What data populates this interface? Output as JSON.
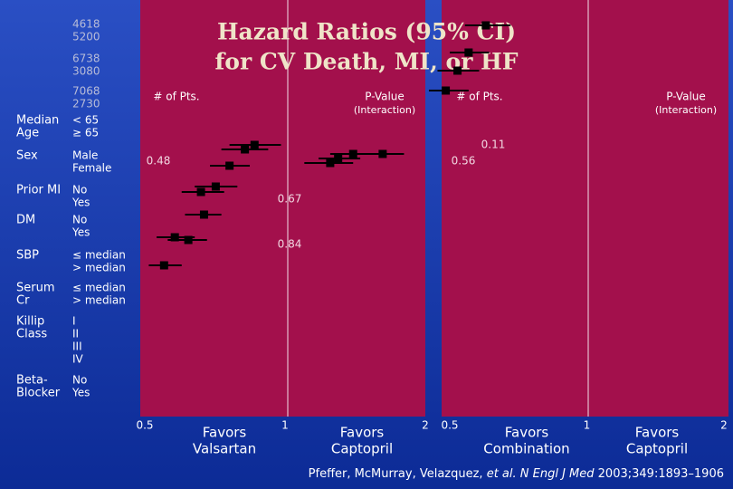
{
  "title": [
    "Hazard Ratios (95% CI)",
    "for CV Death, MI, or HF"
  ],
  "subgroups": [
    {
      "label": [
        "Median",
        "Age"
      ],
      "levels": [
        "< 65",
        "≥ 65"
      ]
    },
    {
      "label": [
        "Sex"
      ],
      "levels": [
        "Male",
        "Female"
      ]
    },
    {
      "label": [
        "Prior MI"
      ],
      "levels": [
        "No",
        "Yes"
      ]
    },
    {
      "label": [
        "DM"
      ],
      "levels": [
        "No",
        "Yes"
      ]
    },
    {
      "label": [
        "SBP"
      ],
      "levels": [
        "≤ median",
        "> median"
      ]
    },
    {
      "label": [
        "Serum",
        "Cr"
      ],
      "levels": [
        "≤ median",
        "> median"
      ]
    },
    {
      "label": [
        "Killip",
        "Class"
      ],
      "levels": [
        "I",
        "II",
        "III",
        "IV"
      ]
    },
    {
      "label": [
        "Beta-",
        "Blocker"
      ],
      "levels": [
        "No",
        "Yes"
      ]
    }
  ],
  "counts": [
    [
      4618,
      5200
    ],
    [
      6738,
      3080
    ],
    [
      7068,
      2730
    ]
  ],
  "panels": [
    {
      "header_n": "# of Pts.",
      "header_p": "P-Value",
      "header_sub": "(Interaction)",
      "pvalues": [
        0.48,
        0.67,
        0.84
      ],
      "xticks": [
        0.5,
        1,
        2
      ],
      "xlim": [
        0.5,
        2
      ],
      "favors": [
        [
          "Favors",
          "Valsartan"
        ],
        [
          "Favors",
          "Captopril"
        ]
      ],
      "points": [
        {
          "hr": 0.55,
          "lo": 0.51,
          "hi": 0.6
        },
        {
          "hr": 0.58,
          "lo": 0.53,
          "hi": 0.64
        },
        {
          "hr": 0.62,
          "lo": 0.56,
          "hi": 0.68
        },
        {
          "hr": 0.67,
          "lo": 0.61,
          "hi": 0.73
        },
        {
          "hr": 0.66,
          "lo": 0.6,
          "hi": 0.74
        },
        {
          "hr": 0.71,
          "lo": 0.64,
          "hi": 0.79
        },
        {
          "hr": 0.76,
          "lo": 0.69,
          "hi": 0.84
        },
        {
          "hr": 0.82,
          "lo": 0.73,
          "hi": 0.92
        },
        {
          "hr": 0.86,
          "lo": 0.76,
          "hi": 0.98
        },
        {
          "hr": 1.25,
          "lo": 1.1,
          "hi": 1.4
        },
        {
          "hr": 1.3,
          "lo": 1.18,
          "hi": 1.45
        },
        {
          "hr": 1.4,
          "lo": 1.25,
          "hi": 1.55
        },
        {
          "hr": 1.62,
          "lo": 1.45,
          "hi": 1.8
        }
      ]
    },
    {
      "header_n": "# of Pts.",
      "header_p": "P-Value",
      "header_sub": "(Interaction)",
      "pvalues": [
        0.11,
        0.56
      ],
      "xticks": [
        0.5,
        1,
        2
      ],
      "xlim": [
        0.5,
        2
      ],
      "favors": [
        [
          "Favors",
          "Combination"
        ],
        [
          "Favors",
          "Captopril"
        ]
      ],
      "points": [
        {
          "hr": 0.49,
          "lo": 0.45,
          "hi": 0.55
        },
        {
          "hr": 0.52,
          "lo": 0.47,
          "hi": 0.58
        },
        {
          "hr": 0.55,
          "lo": 0.5,
          "hi": 0.61
        },
        {
          "hr": 0.6,
          "lo": 0.54,
          "hi": 0.68
        }
      ]
    }
  ],
  "citation": [
    "Pfeffer, McMurray, Velazquez, ",
    "et al.",
    " N Engl J Med",
    " 2003;349:1893–1906"
  ]
}
